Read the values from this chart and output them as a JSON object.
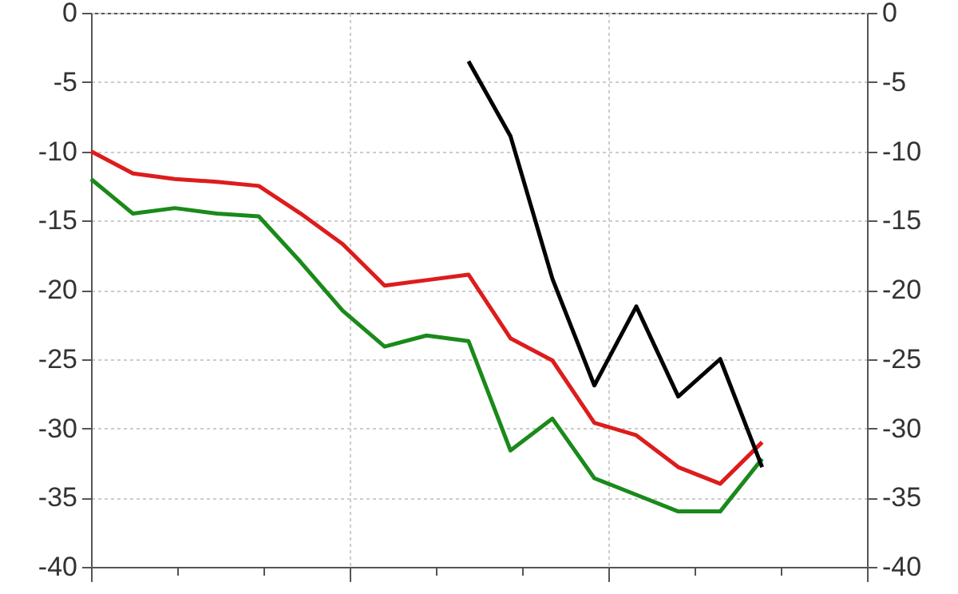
{
  "chart_data": {
    "type": "line",
    "categories": [
      null,
      null,
      null,
      null,
      null,
      null,
      null,
      null,
      null,
      null,
      null,
      null,
      null,
      null,
      null,
      null,
      null
    ],
    "series": [
      {
        "color": "#dd1c1c",
        "values": [
          -10,
          -11.6,
          -12.0,
          -12.2,
          -12.5,
          -14.5,
          -16.7,
          -19.7,
          -19.3,
          -18.9,
          -23.5,
          -25.1,
          -29.6,
          -30.5,
          -32.8,
          -34,
          -31
        ]
      },
      {
        "color": "#1a8a1a",
        "values": [
          -12,
          -14.5,
          -14.1,
          -14.5,
          -14.7,
          -18,
          -21.5,
          -24.1,
          -23.3,
          -23.7,
          -31.6,
          -29.3,
          -33.6,
          -34.8,
          -36,
          -36,
          -32.2
        ]
      },
      {
        "color": "#000000",
        "values": [
          null,
          null,
          null,
          null,
          null,
          null,
          null,
          null,
          null,
          -3.5,
          -8.9,
          -19.2,
          -26.9,
          -21.2,
          -27.7,
          -25,
          -32.8
        ]
      }
    ],
    "ylim": [
      -40,
      0
    ],
    "yticks": [
      -40,
      -35,
      -30,
      -25,
      -20,
      -15,
      -10,
      -5,
      0
    ],
    "y2lim": [
      -40,
      0
    ],
    "y2ticks": [
      -40,
      -35,
      -30,
      -25,
      -20,
      -15,
      -10,
      -5,
      0
    ],
    "grid": true,
    "marker": "none",
    "line_style": "solid"
  }
}
